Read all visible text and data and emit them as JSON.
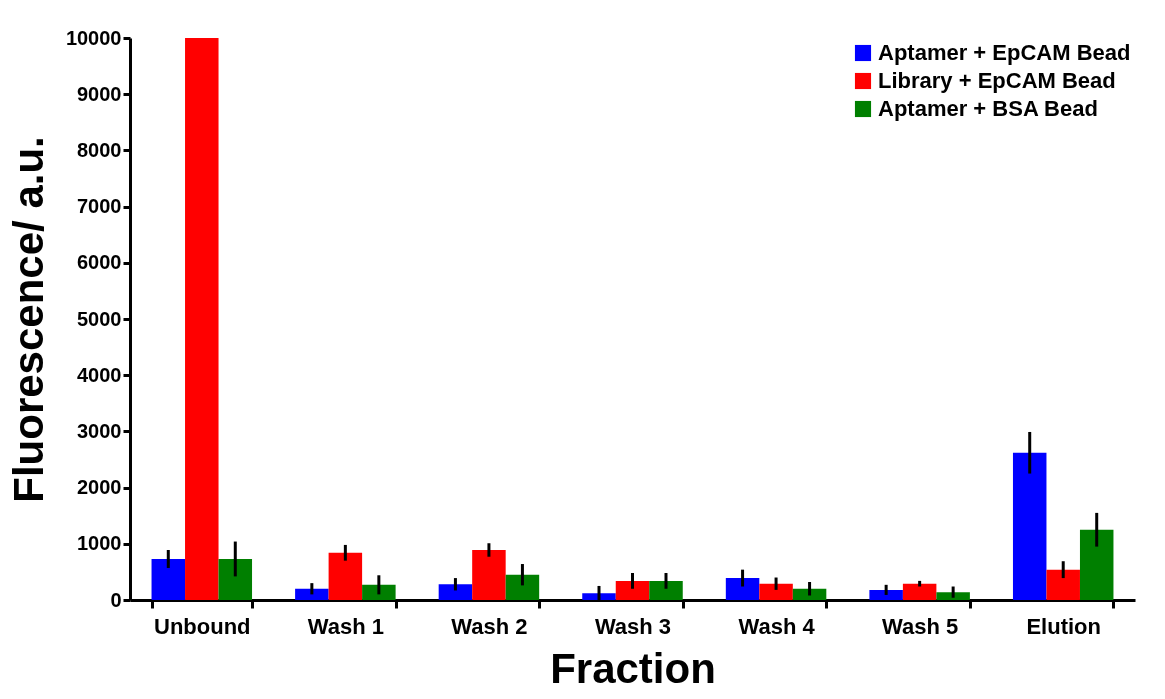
{
  "chart_data": {
    "type": "bar",
    "xlabel": "Fraction",
    "ylabel": "Fluorescence/ a.u.",
    "categories": [
      "Unbound",
      "Wash 1",
      "Wash 2",
      "Wash 3",
      "Wash 4",
      "Wash 5",
      "Elution"
    ],
    "series": [
      {
        "name": "Aptamer + EpCAM Bead",
        "color": "#0000ff",
        "values": [
          730,
          200,
          280,
          120,
          390,
          180,
          2620
        ],
        "errors": [
          160,
          100,
          110,
          130,
          150,
          90,
          370
        ]
      },
      {
        "name": "Library + EpCAM Bead",
        "color": "#ff0000",
        "values": [
          10000,
          840,
          890,
          340,
          290,
          290,
          540
        ],
        "errors": [
          null,
          140,
          120,
          140,
          110,
          50,
          150
        ]
      },
      {
        "name": "Aptamer + BSA Bead",
        "color": "#007f00",
        "values": [
          730,
          270,
          450,
          340,
          200,
          140,
          1250
        ],
        "errors": [
          310,
          170,
          190,
          140,
          120,
          100,
          300
        ]
      }
    ],
    "ylim": [
      0,
      10000
    ],
    "yticks": [
      0,
      1000,
      2000,
      3000,
      4000,
      5000,
      6000,
      7000,
      8000,
      9000,
      10000
    ],
    "grid": false,
    "legend": "top right"
  }
}
